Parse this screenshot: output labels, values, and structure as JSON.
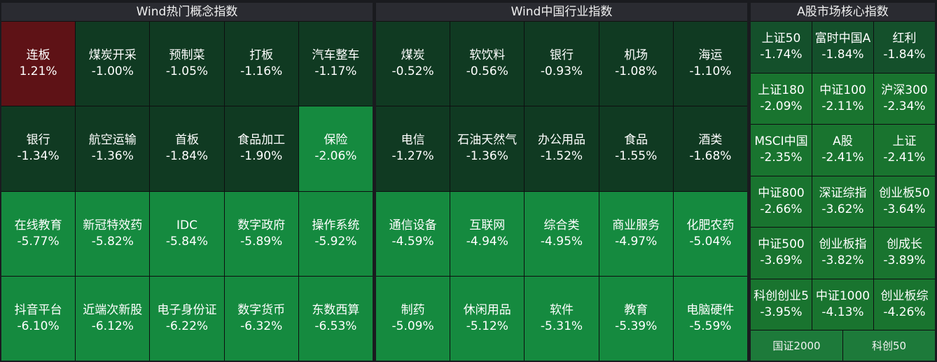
{
  "colors": {
    "up": "#5e1216",
    "down_very_dark": "#103a22",
    "down_dark": "#14502b",
    "down_mid": "#19742f",
    "down_bright": "#158a3f"
  },
  "panels": [
    {
      "title": "Wind热门概念指数",
      "cols": 5,
      "tiles": [
        {
          "name": "连板",
          "pct": "1.21%",
          "shade": "up"
        },
        {
          "name": "煤炭开采",
          "pct": "-1.00%",
          "shade": "down_very_dark"
        },
        {
          "name": "预制菜",
          "pct": "-1.05%",
          "shade": "down_very_dark"
        },
        {
          "name": "打板",
          "pct": "-1.16%",
          "shade": "down_very_dark"
        },
        {
          "name": "汽车整车",
          "pct": "-1.17%",
          "shade": "down_very_dark"
        },
        {
          "name": "银行",
          "pct": "-1.34%",
          "shade": "down_very_dark"
        },
        {
          "name": "航空运输",
          "pct": "-1.36%",
          "shade": "down_very_dark"
        },
        {
          "name": "首板",
          "pct": "-1.84%",
          "shade": "down_very_dark"
        },
        {
          "name": "食品加工",
          "pct": "-1.90%",
          "shade": "down_very_dark"
        },
        {
          "name": "保险",
          "pct": "-2.06%",
          "shade": "down_bright"
        },
        {
          "name": "在线教育",
          "pct": "-5.77%",
          "shade": "down_bright"
        },
        {
          "name": "新冠特效药",
          "pct": "-5.82%",
          "shade": "down_bright"
        },
        {
          "name": "IDC",
          "pct": "-5.84%",
          "shade": "down_bright"
        },
        {
          "name": "数字政府",
          "pct": "-5.89%",
          "shade": "down_bright"
        },
        {
          "name": "操作系统",
          "pct": "-5.92%",
          "shade": "down_bright"
        },
        {
          "name": "抖音平台",
          "pct": "-6.10%",
          "shade": "down_bright"
        },
        {
          "name": "近端次新股",
          "pct": "-6.12%",
          "shade": "down_bright"
        },
        {
          "name": "电子身份证",
          "pct": "-6.22%",
          "shade": "down_bright"
        },
        {
          "name": "数字货币",
          "pct": "-6.32%",
          "shade": "down_bright"
        },
        {
          "name": "东数西算",
          "pct": "-6.53%",
          "shade": "down_bright"
        }
      ]
    },
    {
      "title": "Wind中国行业指数",
      "cols": 5,
      "tiles": [
        {
          "name": "煤炭",
          "pct": "-0.52%",
          "shade": "down_very_dark"
        },
        {
          "name": "软饮料",
          "pct": "-0.56%",
          "shade": "down_very_dark"
        },
        {
          "name": "银行",
          "pct": "-0.93%",
          "shade": "down_very_dark"
        },
        {
          "name": "机场",
          "pct": "-1.08%",
          "shade": "down_very_dark"
        },
        {
          "name": "海运",
          "pct": "-1.10%",
          "shade": "down_very_dark"
        },
        {
          "name": "电信",
          "pct": "-1.27%",
          "shade": "down_very_dark"
        },
        {
          "name": "石油天然气",
          "pct": "-1.36%",
          "shade": "down_very_dark"
        },
        {
          "name": "办公用品",
          "pct": "-1.52%",
          "shade": "down_very_dark"
        },
        {
          "name": "食品",
          "pct": "-1.55%",
          "shade": "down_very_dark"
        },
        {
          "name": "酒类",
          "pct": "-1.68%",
          "shade": "down_very_dark"
        },
        {
          "name": "通信设备",
          "pct": "-4.59%",
          "shade": "down_bright"
        },
        {
          "name": "互联网",
          "pct": "-4.94%",
          "shade": "down_bright"
        },
        {
          "name": "综合类",
          "pct": "-4.95%",
          "shade": "down_bright"
        },
        {
          "name": "商业服务",
          "pct": "-4.97%",
          "shade": "down_bright"
        },
        {
          "name": "化肥农药",
          "pct": "-5.04%",
          "shade": "down_bright"
        },
        {
          "name": "制药",
          "pct": "-5.09%",
          "shade": "down_bright"
        },
        {
          "name": "休闲用品",
          "pct": "-5.12%",
          "shade": "down_bright"
        },
        {
          "name": "软件",
          "pct": "-5.31%",
          "shade": "down_bright"
        },
        {
          "name": "教育",
          "pct": "-5.39%",
          "shade": "down_bright"
        },
        {
          "name": "电脑硬件",
          "pct": "-5.59%",
          "shade": "down_bright"
        }
      ]
    },
    {
      "title": "A股市场核心指数",
      "cols": 3,
      "tiles": [
        {
          "name": "上证50",
          "pct": "-1.74%",
          "shade": "down_dark"
        },
        {
          "name": "富时中国A",
          "pct": "-1.84%",
          "shade": "down_dark"
        },
        {
          "name": "红利",
          "pct": "-1.84%",
          "shade": "down_dark"
        },
        {
          "name": "上证180",
          "pct": "-2.09%",
          "shade": "down_mid"
        },
        {
          "name": "中证100",
          "pct": "-2.11%",
          "shade": "down_mid"
        },
        {
          "name": "沪深300",
          "pct": "-2.34%",
          "shade": "down_mid"
        },
        {
          "name": "MSCI中国",
          "pct": "-2.35%",
          "shade": "down_mid"
        },
        {
          "name": "A股",
          "pct": "-2.41%",
          "shade": "down_mid"
        },
        {
          "name": "上证",
          "pct": "-2.41%",
          "shade": "down_mid"
        },
        {
          "name": "中证800",
          "pct": "-2.66%",
          "shade": "down_mid"
        },
        {
          "name": "深证综指",
          "pct": "-3.62%",
          "shade": "down_mid"
        },
        {
          "name": "创业板50",
          "pct": "-3.64%",
          "shade": "down_mid"
        },
        {
          "name": "中证500",
          "pct": "-3.69%",
          "shade": "down_mid"
        },
        {
          "name": "创业板指",
          "pct": "-3.82%",
          "shade": "down_mid"
        },
        {
          "name": "创成长",
          "pct": "-3.89%",
          "shade": "down_mid"
        },
        {
          "name": "科创创业5",
          "pct": "-3.95%",
          "shade": "down_mid"
        },
        {
          "name": "中证1000",
          "pct": "-4.13%",
          "shade": "down_mid"
        },
        {
          "name": "创业板综",
          "pct": "-4.26%",
          "shade": "down_mid"
        }
      ],
      "bottom": [
        "国证2000",
        "科创50"
      ]
    }
  ]
}
